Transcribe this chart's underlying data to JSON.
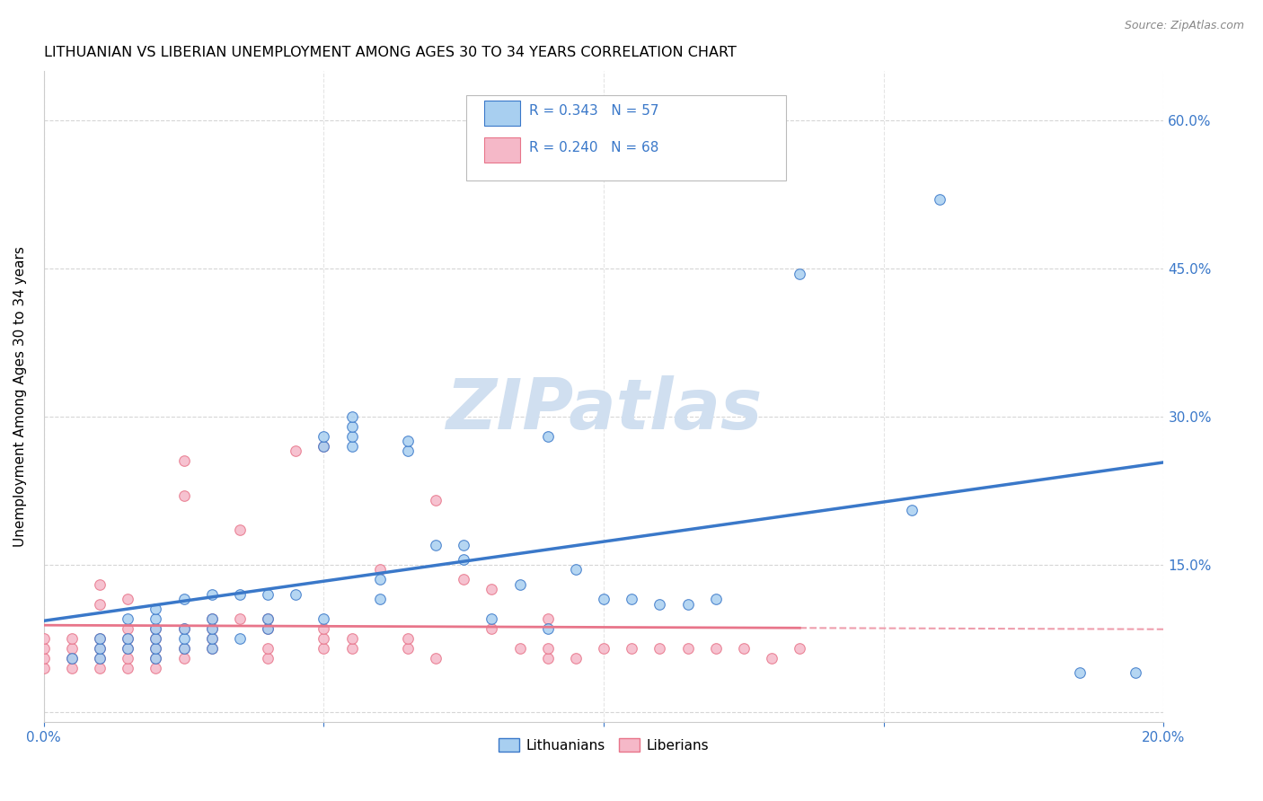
{
  "title": "LITHUANIAN VS LIBERIAN UNEMPLOYMENT AMONG AGES 30 TO 34 YEARS CORRELATION CHART",
  "source": "Source: ZipAtlas.com",
  "ylabel": "Unemployment Among Ages 30 to 34 years",
  "xlim": [
    0.0,
    0.2
  ],
  "ylim": [
    -0.01,
    0.65
  ],
  "xticks": [
    0.0,
    0.05,
    0.1,
    0.15,
    0.2
  ],
  "yticks": [
    0.0,
    0.15,
    0.3,
    0.45,
    0.6
  ],
  "color_blue": "#a8cff0",
  "color_pink": "#f5b8c8",
  "line_blue": "#3a78c9",
  "line_pink": "#e8758a",
  "R_blue": 0.343,
  "N_blue": 57,
  "R_pink": 0.24,
  "N_pink": 68,
  "watermark": "ZIPatlas",
  "watermark_color": "#d0dff0",
  "legend_labels": [
    "Lithuanians",
    "Liberians"
  ],
  "blue_points_x": [
    0.005,
    0.01,
    0.01,
    0.01,
    0.015,
    0.015,
    0.015,
    0.02,
    0.02,
    0.02,
    0.02,
    0.02,
    0.02,
    0.025,
    0.025,
    0.025,
    0.025,
    0.03,
    0.03,
    0.03,
    0.03,
    0.03,
    0.035,
    0.035,
    0.04,
    0.04,
    0.04,
    0.045,
    0.05,
    0.05,
    0.05,
    0.055,
    0.055,
    0.055,
    0.055,
    0.06,
    0.06,
    0.065,
    0.065,
    0.07,
    0.075,
    0.075,
    0.08,
    0.085,
    0.09,
    0.09,
    0.095,
    0.1,
    0.105,
    0.11,
    0.115,
    0.12,
    0.135,
    0.155,
    0.16,
    0.185,
    0.195
  ],
  "blue_points_y": [
    0.055,
    0.055,
    0.065,
    0.075,
    0.065,
    0.075,
    0.095,
    0.055,
    0.065,
    0.075,
    0.085,
    0.095,
    0.105,
    0.065,
    0.075,
    0.085,
    0.115,
    0.065,
    0.075,
    0.085,
    0.095,
    0.12,
    0.075,
    0.12,
    0.085,
    0.095,
    0.12,
    0.12,
    0.095,
    0.27,
    0.28,
    0.27,
    0.28,
    0.29,
    0.3,
    0.115,
    0.135,
    0.265,
    0.275,
    0.17,
    0.155,
    0.17,
    0.095,
    0.13,
    0.085,
    0.28,
    0.145,
    0.115,
    0.115,
    0.11,
    0.11,
    0.115,
    0.445,
    0.205,
    0.52,
    0.04,
    0.04
  ],
  "pink_points_x": [
    0.0,
    0.0,
    0.0,
    0.0,
    0.005,
    0.005,
    0.005,
    0.005,
    0.01,
    0.01,
    0.01,
    0.01,
    0.01,
    0.01,
    0.015,
    0.015,
    0.015,
    0.015,
    0.015,
    0.015,
    0.02,
    0.02,
    0.02,
    0.02,
    0.02,
    0.025,
    0.025,
    0.025,
    0.025,
    0.025,
    0.03,
    0.03,
    0.03,
    0.03,
    0.035,
    0.035,
    0.04,
    0.04,
    0.04,
    0.04,
    0.045,
    0.05,
    0.05,
    0.05,
    0.05,
    0.055,
    0.055,
    0.06,
    0.065,
    0.065,
    0.07,
    0.07,
    0.075,
    0.08,
    0.08,
    0.085,
    0.09,
    0.09,
    0.09,
    0.095,
    0.1,
    0.105,
    0.11,
    0.115,
    0.12,
    0.125,
    0.13,
    0.135
  ],
  "pink_points_y": [
    0.045,
    0.055,
    0.065,
    0.075,
    0.045,
    0.055,
    0.065,
    0.075,
    0.045,
    0.055,
    0.065,
    0.075,
    0.11,
    0.13,
    0.045,
    0.055,
    0.065,
    0.075,
    0.085,
    0.115,
    0.045,
    0.055,
    0.065,
    0.075,
    0.085,
    0.055,
    0.065,
    0.085,
    0.22,
    0.255,
    0.065,
    0.075,
    0.085,
    0.095,
    0.095,
    0.185,
    0.055,
    0.065,
    0.085,
    0.095,
    0.265,
    0.065,
    0.075,
    0.085,
    0.27,
    0.065,
    0.075,
    0.145,
    0.065,
    0.075,
    0.055,
    0.215,
    0.135,
    0.085,
    0.125,
    0.065,
    0.055,
    0.065,
    0.095,
    0.055,
    0.065,
    0.065,
    0.065,
    0.065,
    0.065,
    0.065,
    0.055,
    0.065
  ]
}
